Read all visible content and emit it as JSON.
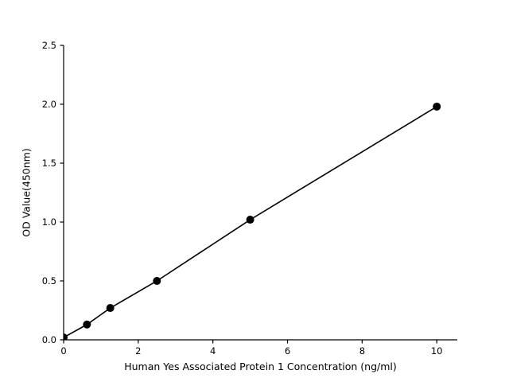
{
  "figure": {
    "background": "#ffffff",
    "axis_color": "#000000",
    "tick_label_color": "#000000"
  },
  "chart_data": {
    "type": "scatter",
    "title": "",
    "xlabel": "Human Yes Associated Protein 1 Concentration (ng/ml)",
    "ylabel": "OD Value(450nm)",
    "x": [
      0,
      0.625,
      1.25,
      2.5,
      5,
      10
    ],
    "y": [
      0.02,
      0.13,
      0.27,
      0.5,
      1.02,
      1.98
    ],
    "line": true,
    "line_color": "#000000",
    "marker_color": "#000000",
    "marker_radius": 5,
    "xlim": [
      0,
      10.55
    ],
    "ylim": [
      0,
      2.5
    ],
    "xticks": [
      0,
      2,
      4,
      6,
      8,
      10
    ],
    "xtick_labels": [
      "0",
      "2",
      "4",
      "6",
      "8",
      "10"
    ],
    "yticks": [
      0,
      0.5,
      1.0,
      1.5,
      2.0,
      2.5
    ],
    "ytick_labels": [
      "0.0",
      "0.5",
      "1.0",
      "1.5",
      "2.0",
      "2.5"
    ],
    "grid": false,
    "legend": null
  }
}
